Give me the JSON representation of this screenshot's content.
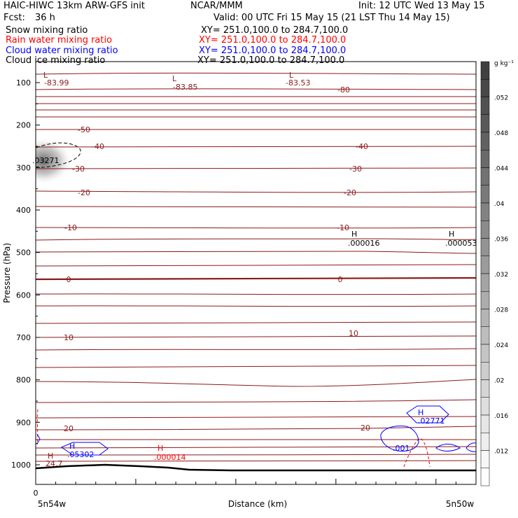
{
  "header": {
    "title_left": "HAIC-HIWC 13km ARW-GFS init",
    "model_org": "NCAR/MMM",
    "init": "Init: 12 UTC Wed 13 May 15",
    "fcst_label": "Fcst:",
    "fcst_value": "36 h",
    "valid": "Valid: 00 UTC Fri 15 May 15 (21 LST Thu 14 May 15)"
  },
  "fields": [
    {
      "name": "Snow mixing ratio",
      "xy": "XY= 251.0,100.0 to 284.7,100.0",
      "color": "#000000"
    },
    {
      "name": "Rain water mixing ratio",
      "xy": "XY= 251.0,100.0 to 284.7,100.0",
      "color": "#ff0000"
    },
    {
      "name": "Cloud water mixing ratio",
      "xy": "XY= 251.0,100.0 to 284.7,100.0",
      "color": "#0000ff"
    },
    {
      "name": "Cloud ice mixing ratio",
      "xy": "XY= 251.0,100.0 to 284.7,100.0",
      "color": "#000000"
    }
  ],
  "colors": {
    "temperature": "#8b1a1a",
    "rain": "#ff0000",
    "cloud_water": "#0000ff",
    "terrain": "#000000"
  },
  "chart_data": {
    "type": "cross-section",
    "ylabel": "Pressure (hPa)",
    "xlabel": "Distance (km)",
    "x_start_label": "0",
    "x_left_label": "5n54w",
    "x_right_label": "5n50w",
    "yticks": [
      "100",
      "200",
      "300",
      "400",
      "500",
      "600",
      "700",
      "800",
      "900",
      "1000"
    ],
    "ylim": [
      50,
      1050
    ],
    "colorbar": {
      "units": "g kg⁻¹",
      "ticks": [
        ".052",
        ".048",
        ".044",
        ".04",
        ".036",
        ".032",
        ".028",
        ".024",
        ".02",
        ".016",
        ".012"
      ],
      "range": [
        0.008,
        0.056
      ]
    },
    "temperature_labels": [
      "-80",
      "-50",
      "-40",
      "-40",
      "-30",
      "-30",
      "-20",
      "-20",
      "-10",
      "-10",
      "0",
      "0",
      "10",
      "10",
      "20",
      "20"
    ],
    "extrema": [
      {
        "kind": "L",
        "value": "-83.99",
        "field": "temperature"
      },
      {
        "kind": "L",
        "value": "-83.85",
        "field": "temperature"
      },
      {
        "kind": "L",
        "value": "-83.53",
        "field": "temperature"
      },
      {
        "kind": "H",
        "value": ".000016",
        "field": "cloud_ice"
      },
      {
        "kind": "H",
        "value": ".000053",
        "field": "cloud_ice"
      },
      {
        "kind": "H",
        "value": "24.7",
        "field": "temperature"
      },
      {
        "kind": "H",
        "value": ".05302",
        "field": "cloud_water"
      },
      {
        "kind": "H",
        "value": ".000014",
        "field": "rain"
      },
      {
        "kind": "H",
        "value": ".02771",
        "field": "cloud_water"
      }
    ],
    "contour_labels": [
      {
        "value": ".03271",
        "field": "snow"
      },
      {
        "value": ".001",
        "field": "cloud_water"
      }
    ]
  }
}
